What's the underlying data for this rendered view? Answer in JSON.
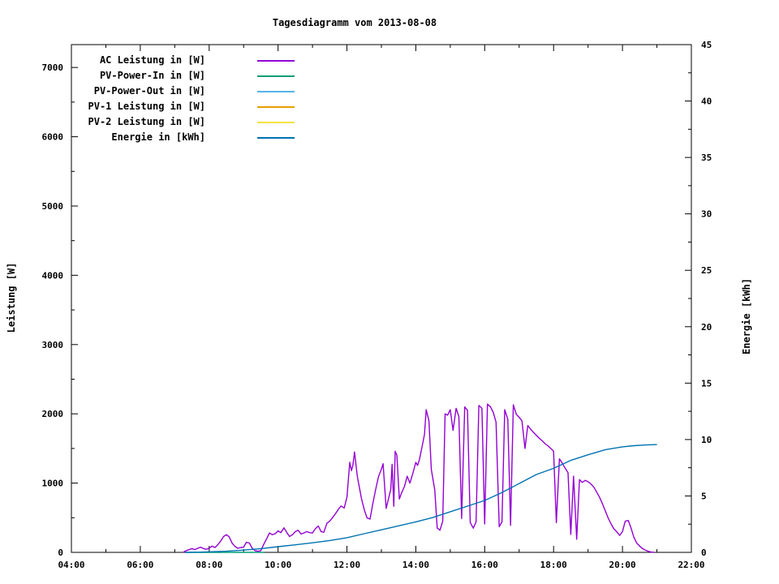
{
  "chart_data": {
    "type": "line",
    "title": "Tagesdiagramm vom 2013-08-08",
    "x_axis": {
      "range_hours": [
        4,
        22
      ],
      "major_tick_hours": [
        4,
        6,
        8,
        10,
        12,
        14,
        16,
        18,
        20,
        22
      ],
      "major_tick_labels": [
        "04:00",
        "06:00",
        "08:00",
        "10:00",
        "12:00",
        "14:00",
        "16:00",
        "18:00",
        "20:00",
        "22:00"
      ],
      "minor_step_hours": 1
    },
    "y_left": {
      "label": "Leistung [W]",
      "range": [
        0,
        7330
      ],
      "ticks": [
        0,
        1000,
        2000,
        3000,
        4000,
        5000,
        6000,
        7000
      ],
      "minor_step": 500
    },
    "y_right": {
      "label": "Energie [kWh]",
      "range": [
        0,
        45
      ],
      "ticks": [
        0,
        5,
        10,
        15,
        20,
        25,
        30,
        35,
        40,
        45
      ],
      "minor_step": 2.5
    },
    "grid": false,
    "legend_position": "top-left-inside",
    "legend": [
      {
        "label": "AC Leistung in [W]",
        "color": "#9400D3"
      },
      {
        "label": "PV-Power-In in [W]",
        "color": "#009E73"
      },
      {
        "label": "PV-Power-Out in [W]",
        "color": "#56B4E9"
      },
      {
        "label": "PV-1 Leistung in [W]",
        "color": "#E69F00"
      },
      {
        "label": "PV-2 Leistung in [W]",
        "color": "#F0E442"
      },
      {
        "label": "Energie in [kWh]",
        "color": "#0072B2"
      }
    ],
    "series": [
      {
        "name": "PV-Power-Out in [W]",
        "color": "#56B4E9",
        "axis": "left",
        "points": []
      },
      {
        "name": "PV-1 Leistung in [W]",
        "color": "#E69F00",
        "axis": "left",
        "points": []
      },
      {
        "name": "PV-2 Leistung in [W]",
        "color": "#F0E442",
        "axis": "left",
        "points": []
      },
      {
        "name": "PV-Power-In in [W]",
        "color": "#009E73",
        "axis": "left",
        "points": [
          [
            7.3,
            0
          ],
          [
            9.6,
            0
          ]
        ]
      },
      {
        "name": "AC Leistung in [W]",
        "color": "#9400D3",
        "axis": "left",
        "points": [
          [
            7.25,
            0
          ],
          [
            7.33,
            25
          ],
          [
            7.42,
            40
          ],
          [
            7.5,
            55
          ],
          [
            7.58,
            40
          ],
          [
            7.67,
            60
          ],
          [
            7.75,
            75
          ],
          [
            7.83,
            55
          ],
          [
            7.92,
            45
          ],
          [
            8.0,
            60
          ],
          [
            8.08,
            90
          ],
          [
            8.17,
            70
          ],
          [
            8.25,
            110
          ],
          [
            8.33,
            160
          ],
          [
            8.42,
            230
          ],
          [
            8.5,
            255
          ],
          [
            8.58,
            225
          ],
          [
            8.67,
            130
          ],
          [
            8.75,
            85
          ],
          [
            8.83,
            60
          ],
          [
            8.92,
            70
          ],
          [
            9.0,
            75
          ],
          [
            9.08,
            145
          ],
          [
            9.17,
            135
          ],
          [
            9.25,
            60
          ],
          [
            9.33,
            25
          ],
          [
            9.42,
            15
          ],
          [
            9.5,
            25
          ],
          [
            9.58,
            110
          ],
          [
            9.67,
            200
          ],
          [
            9.75,
            280
          ],
          [
            9.83,
            255
          ],
          [
            9.92,
            270
          ],
          [
            10.0,
            310
          ],
          [
            10.08,
            285
          ],
          [
            10.17,
            355
          ],
          [
            10.25,
            290
          ],
          [
            10.33,
            230
          ],
          [
            10.42,
            255
          ],
          [
            10.5,
            300
          ],
          [
            10.58,
            320
          ],
          [
            10.67,
            265
          ],
          [
            10.75,
            280
          ],
          [
            10.83,
            300
          ],
          [
            10.92,
            285
          ],
          [
            11.0,
            280
          ],
          [
            11.08,
            340
          ],
          [
            11.17,
            380
          ],
          [
            11.25,
            300
          ],
          [
            11.33,
            290
          ],
          [
            11.42,
            420
          ],
          [
            11.5,
            450
          ],
          [
            11.58,
            500
          ],
          [
            11.67,
            560
          ],
          [
            11.75,
            620
          ],
          [
            11.83,
            670
          ],
          [
            11.92,
            640
          ],
          [
            12.0,
            800
          ],
          [
            12.08,
            1300
          ],
          [
            12.13,
            1180
          ],
          [
            12.17,
            1250
          ],
          [
            12.22,
            1450
          ],
          [
            12.3,
            1100
          ],
          [
            12.42,
            780
          ],
          [
            12.5,
            620
          ],
          [
            12.58,
            500
          ],
          [
            12.67,
            480
          ],
          [
            12.75,
            700
          ],
          [
            12.83,
            900
          ],
          [
            12.92,
            1100
          ],
          [
            13.0,
            1200
          ],
          [
            13.05,
            1280
          ],
          [
            13.14,
            635
          ],
          [
            13.22,
            800
          ],
          [
            13.27,
            905
          ],
          [
            13.31,
            1270
          ],
          [
            13.36,
            665
          ],
          [
            13.4,
            1460
          ],
          [
            13.45,
            1400
          ],
          [
            13.52,
            770
          ],
          [
            13.58,
            850
          ],
          [
            13.67,
            950
          ],
          [
            13.75,
            1100
          ],
          [
            13.83,
            1000
          ],
          [
            13.92,
            1150
          ],
          [
            14.0,
            1300
          ],
          [
            14.05,
            1255
          ],
          [
            14.1,
            1330
          ],
          [
            14.17,
            1500
          ],
          [
            14.25,
            1700
          ],
          [
            14.3,
            2060
          ],
          [
            14.38,
            1900
          ],
          [
            14.45,
            1200
          ],
          [
            14.55,
            900
          ],
          [
            14.62,
            350
          ],
          [
            14.7,
            320
          ],
          [
            14.78,
            450
          ],
          [
            14.85,
            2000
          ],
          [
            14.92,
            1980
          ],
          [
            15.0,
            2060
          ],
          [
            15.08,
            1760
          ],
          [
            15.17,
            2080
          ],
          [
            15.25,
            1960
          ],
          [
            15.33,
            490
          ],
          [
            15.42,
            2100
          ],
          [
            15.5,
            2050
          ],
          [
            15.58,
            430
          ],
          [
            15.67,
            350
          ],
          [
            15.75,
            440
          ],
          [
            15.83,
            2120
          ],
          [
            15.92,
            2080
          ],
          [
            16.0,
            410
          ],
          [
            16.08,
            2140
          ],
          [
            16.17,
            2100
          ],
          [
            16.25,
            2020
          ],
          [
            16.33,
            1880
          ],
          [
            16.42,
            370
          ],
          [
            16.5,
            440
          ],
          [
            16.58,
            2060
          ],
          [
            16.67,
            1920
          ],
          [
            16.75,
            390
          ],
          [
            16.83,
            2130
          ],
          [
            16.92,
            1990
          ],
          [
            17.0,
            1950
          ],
          [
            17.08,
            1900
          ],
          [
            17.17,
            1500
          ],
          [
            17.25,
            1830
          ],
          [
            17.33,
            1780
          ],
          [
            17.42,
            1730
          ],
          [
            17.5,
            1690
          ],
          [
            17.58,
            1650
          ],
          [
            17.67,
            1610
          ],
          [
            17.75,
            1570
          ],
          [
            17.83,
            1540
          ],
          [
            17.92,
            1500
          ],
          [
            18.0,
            1460
          ],
          [
            18.08,
            430
          ],
          [
            18.17,
            1350
          ],
          [
            18.25,
            1290
          ],
          [
            18.33,
            1220
          ],
          [
            18.42,
            1150
          ],
          [
            18.5,
            260
          ],
          [
            18.58,
            1100
          ],
          [
            18.67,
            190
          ],
          [
            18.75,
            1050
          ],
          [
            18.83,
            1010
          ],
          [
            18.92,
            1040
          ],
          [
            19.0,
            1020
          ],
          [
            19.08,
            990
          ],
          [
            19.17,
            940
          ],
          [
            19.25,
            870
          ],
          [
            19.33,
            800
          ],
          [
            19.42,
            700
          ],
          [
            19.5,
            600
          ],
          [
            19.58,
            500
          ],
          [
            19.67,
            410
          ],
          [
            19.75,
            340
          ],
          [
            19.83,
            300
          ],
          [
            19.92,
            245
          ],
          [
            20.0,
            300
          ],
          [
            20.08,
            450
          ],
          [
            20.17,
            460
          ],
          [
            20.25,
            350
          ],
          [
            20.33,
            220
          ],
          [
            20.42,
            130
          ],
          [
            20.5,
            90
          ],
          [
            20.58,
            55
          ],
          [
            20.67,
            30
          ],
          [
            20.75,
            15
          ],
          [
            20.83,
            5
          ],
          [
            20.92,
            0
          ]
        ]
      },
      {
        "name": "Energie in [kWh]",
        "color": "#0072B2",
        "axis": "right",
        "points": [
          [
            7.3,
            0
          ],
          [
            7.75,
            0.02
          ],
          [
            8.0,
            0.05
          ],
          [
            8.5,
            0.1
          ],
          [
            9.0,
            0.2
          ],
          [
            9.5,
            0.33
          ],
          [
            10.0,
            0.5
          ],
          [
            10.5,
            0.67
          ],
          [
            11.0,
            0.85
          ],
          [
            11.5,
            1.05
          ],
          [
            12.0,
            1.3
          ],
          [
            12.5,
            1.65
          ],
          [
            13.0,
            2.0
          ],
          [
            13.5,
            2.35
          ],
          [
            14.0,
            2.7
          ],
          [
            14.5,
            3.1
          ],
          [
            15.0,
            3.6
          ],
          [
            15.5,
            4.1
          ],
          [
            16.0,
            4.6
          ],
          [
            16.5,
            5.3
          ],
          [
            17.0,
            6.1
          ],
          [
            17.5,
            6.9
          ],
          [
            18.0,
            7.45
          ],
          [
            18.5,
            8.15
          ],
          [
            19.0,
            8.65
          ],
          [
            19.5,
            9.1
          ],
          [
            20.0,
            9.35
          ],
          [
            20.33,
            9.45
          ],
          [
            20.67,
            9.52
          ],
          [
            21.0,
            9.55
          ]
        ]
      }
    ]
  }
}
